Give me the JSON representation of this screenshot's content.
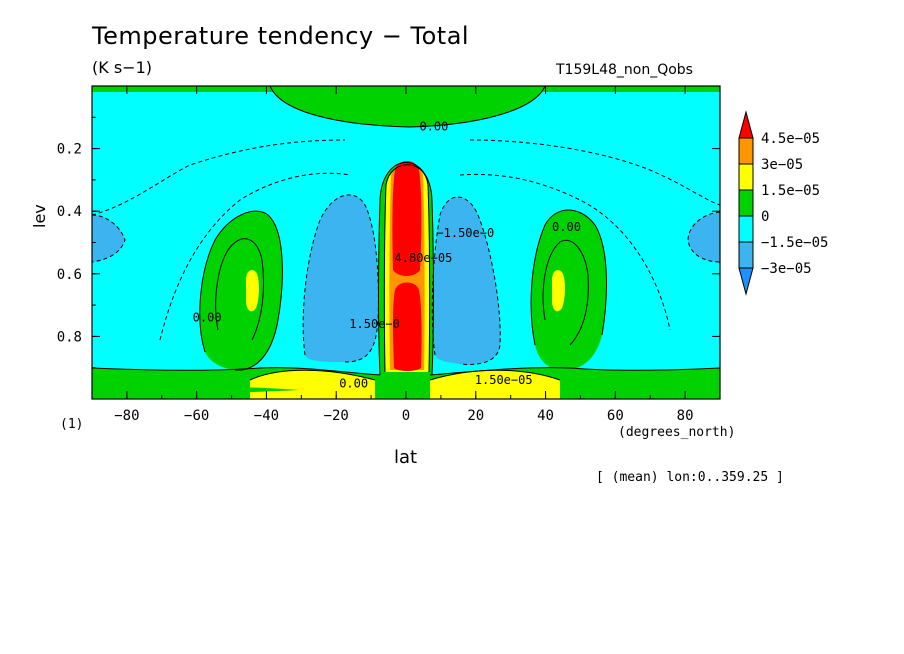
{
  "chart_data": {
    "type": "heatmap",
    "title": "Temperature tendency − Total",
    "units": "(K s−1)",
    "run_name": "T159L48_non_Qobs",
    "xlabel": "lat",
    "ylabel": "lev",
    "x_units": "(degrees_north)",
    "y_units": "(1)",
    "note": "[ (mean) lon:0..359.25 ]",
    "xlim": [
      -90,
      90
    ],
    "ylim": [
      0,
      1
    ],
    "y_inverted": true,
    "x_ticks": [
      -80,
      -60,
      -40,
      -20,
      0,
      20,
      40,
      60,
      80
    ],
    "x_tick_labels": [
      "−80",
      "−60",
      "−40",
      "−20",
      "0",
      "20",
      "40",
      "60",
      "80"
    ],
    "y_ticks": [
      0.2,
      0.4,
      0.6,
      0.8
    ],
    "y_tick_labels": [
      "0.2",
      "0.4",
      "0.6",
      "0.8"
    ],
    "colorbar": {
      "levels": [
        -3e-05,
        -1.5e-05,
        0,
        1.5e-05,
        3e-05,
        4.5e-05
      ],
      "labels": [
        "−3e−05",
        "−1.5e−05",
        "0",
        "1.5e−05",
        "3e−05",
        "4.5e−05"
      ],
      "colors": [
        "#1e90ff",
        "#3cb4f0",
        "#00ffff",
        "#00d200",
        "#ffff00",
        "#ff9600",
        "#ff0000"
      ]
    },
    "contour_labels": [
      {
        "text": "0.00",
        "lat": 8,
        "lev": 0.13
      },
      {
        "text": "0.00",
        "lat": -57,
        "lev": 0.74
      },
      {
        "text": "0.00",
        "lat": 46,
        "lev": 0.45
      },
      {
        "text": "0.00",
        "lat": -15,
        "lev": 0.95
      },
      {
        "text": "−1.50e−0",
        "lat": 17,
        "lev": 0.47
      },
      {
        "text": "1.50e−0",
        "lat": -9,
        "lev": 0.76
      },
      {
        "text": "1.50e−05",
        "lat": 28,
        "lev": 0.94
      },
      {
        "text": "4.80e−05",
        "lat": 5,
        "lev": 0.55
      }
    ]
  }
}
